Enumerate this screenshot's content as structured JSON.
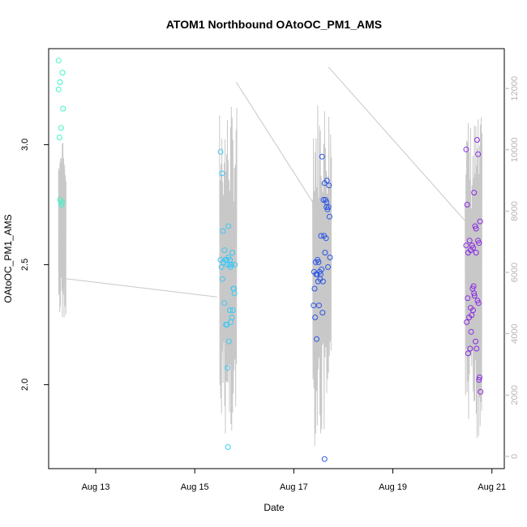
{
  "chart_data": {
    "type": "scatter",
    "title": "ATOM1 Northbound OAtoOC_PM1_AMS",
    "xlabel": "Date",
    "ylabel": "OAtoOC_PM1_AMS",
    "x_ticks": [
      "Aug 13",
      "Aug 15",
      "Aug 17",
      "Aug 19",
      "Aug 21"
    ],
    "y_ticks": [
      "2.0",
      "2.5",
      "3.0"
    ],
    "y2_ticks": [
      "0",
      "2000",
      "4000",
      "6000",
      "8000",
      "10000",
      "12000"
    ],
    "xlim": [
      12.05,
      21.25
    ],
    "ylim": [
      1.65,
      3.4
    ],
    "y2lim": [
      -400,
      13300
    ],
    "grid": false,
    "colors": {
      "axis": "#000000",
      "secondary_axis": "#b4b4b4",
      "line": "#c8c8c8"
    },
    "point_groups": [
      {
        "color": "#3ef5c8",
        "x": [
          12.25,
          12.28,
          12.33,
          12.25,
          12.3,
          12.27,
          12.28,
          12.32,
          12.31,
          12.34
        ],
        "y": [
          3.35,
          3.26,
          3.3,
          3.23,
          3.07,
          3.03,
          2.77,
          2.76,
          2.75,
          3.15
        ]
      },
      {
        "color": "#3cc8f5",
        "x": [
          15.52,
          15.55,
          15.57,
          15.6,
          15.58,
          15.62,
          15.64,
          15.66,
          15.68,
          15.7,
          15.72,
          15.74,
          15.76,
          15.78,
          15.8,
          15.52,
          15.54,
          15.56,
          15.6,
          15.63,
          15.66,
          15.69,
          15.71,
          15.73,
          15.75,
          15.77,
          15.79,
          15.68,
          15.71,
          15.81,
          15.65,
          15.67
        ],
        "y": [
          2.97,
          2.88,
          2.64,
          2.56,
          2.51,
          2.52,
          2.52,
          2.5,
          2.53,
          2.5,
          2.49,
          2.5,
          2.55,
          2.4,
          2.38,
          2.52,
          2.49,
          2.44,
          2.34,
          2.25,
          2.07,
          2.18,
          2.31,
          2.26,
          2.28,
          2.31,
          2.4,
          2.66,
          2.52,
          2.5,
          2.25,
          1.74
        ]
      },
      {
        "color": "#2a55e6",
        "x": [
          17.42,
          17.45,
          17.48,
          17.5,
          17.52,
          17.55,
          17.57,
          17.6,
          17.62,
          17.64,
          17.66,
          17.68,
          17.7,
          17.72,
          17.4,
          17.43,
          17.46,
          17.49,
          17.53,
          17.56,
          17.59,
          17.61,
          17.63,
          17.65,
          17.67,
          17.69,
          17.71,
          17.73,
          17.41,
          17.44,
          17.47,
          17.51,
          17.54,
          17.58,
          17.62,
          17.66
        ],
        "y": [
          2.4,
          2.46,
          2.52,
          2.51,
          2.47,
          2.62,
          2.95,
          2.77,
          2.84,
          2.77,
          2.76,
          2.73,
          2.74,
          2.7,
          2.33,
          2.28,
          2.19,
          2.43,
          2.44,
          2.48,
          2.43,
          2.62,
          2.55,
          2.61,
          2.85,
          2.49,
          2.83,
          2.53,
          2.47,
          2.51,
          2.46,
          2.33,
          2.46,
          2.3,
          1.69,
          2.74
        ]
      },
      {
        "color": "#8a2be2",
        "x": [
          20.48,
          20.5,
          20.52,
          20.55,
          20.57,
          20.6,
          20.62,
          20.64,
          20.66,
          20.68,
          20.7,
          20.72,
          20.74,
          20.76,
          20.48,
          20.51,
          20.54,
          20.57,
          20.59,
          20.61,
          20.63,
          20.65,
          20.67,
          20.69,
          20.71,
          20.73,
          20.75,
          20.49,
          20.52,
          20.56,
          20.58,
          20.62,
          20.64,
          20.68,
          20.72,
          20.74,
          20.77
        ],
        "y": [
          2.98,
          2.75,
          2.55,
          2.6,
          2.56,
          2.58,
          2.57,
          2.8,
          2.66,
          2.65,
          3.02,
          2.96,
          2.59,
          2.68,
          2.58,
          2.36,
          2.28,
          2.32,
          2.29,
          2.4,
          2.41,
          2.37,
          2.18,
          2.15,
          2.35,
          2.34,
          2.03,
          2.26,
          2.13,
          2.15,
          2.22,
          2.31,
          2.38,
          2.55,
          2.6,
          2.02,
          1.97
        ]
      }
    ],
    "line_series": {
      "axis": "right",
      "segments": [
        {
          "x": [
            12.25,
            12.4
          ],
          "y_low": 4500,
          "y_high": 10300
        },
        {
          "x": [
            15.5,
            15.85
          ],
          "y_low": 600,
          "y_high": 11500
        },
        {
          "x": [
            17.38,
            17.76
          ],
          "y_low": 300,
          "y_high": 11800
        },
        {
          "x": [
            20.46,
            20.8
          ],
          "y_low": 300,
          "y_high": 11100
        }
      ],
      "connectors": [
        {
          "x": [
            12.38,
            15.45
          ],
          "y": [
            5800,
            5200
          ]
        },
        {
          "x": [
            15.84,
            17.38
          ],
          "y": [
            12200,
            8300
          ]
        },
        {
          "x": [
            17.7,
            20.45
          ],
          "y": [
            12700,
            7700
          ]
        }
      ]
    }
  }
}
